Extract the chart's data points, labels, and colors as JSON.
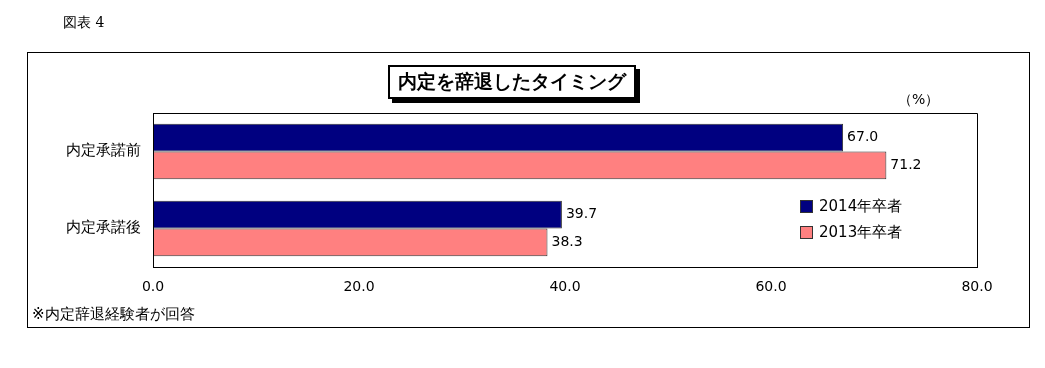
{
  "chart_data": {
    "type": "bar",
    "orientation": "horizontal",
    "title": "内定を辞退したタイミング",
    "xlabel": "（%）",
    "annotations": [
      "図表 4",
      "※内定辞退経験者が回答"
    ],
    "categories": [
      "内定承諾前",
      "内定承諾後"
    ],
    "series": [
      {
        "name": "2014年卒者",
        "color": "#000080",
        "values": [
          67.0,
          39.7
        ],
        "value_labels": [
          "67.0",
          "39.7"
        ]
      },
      {
        "name": "2013年卒者",
        "color": "#ff8080",
        "values": [
          71.2,
          38.3
        ],
        "value_labels": [
          "71.2",
          "38.3"
        ]
      }
    ],
    "xlim": [
      0,
      80
    ],
    "xticks": [
      {
        "value": 0,
        "label": "0.0"
      },
      {
        "value": 20,
        "label": "20.0"
      },
      {
        "value": 40,
        "label": "40.0"
      },
      {
        "value": 60,
        "label": "60.0"
      },
      {
        "value": 80,
        "label": "80.0"
      }
    ],
    "grid": false,
    "legend": "bottom right"
  }
}
